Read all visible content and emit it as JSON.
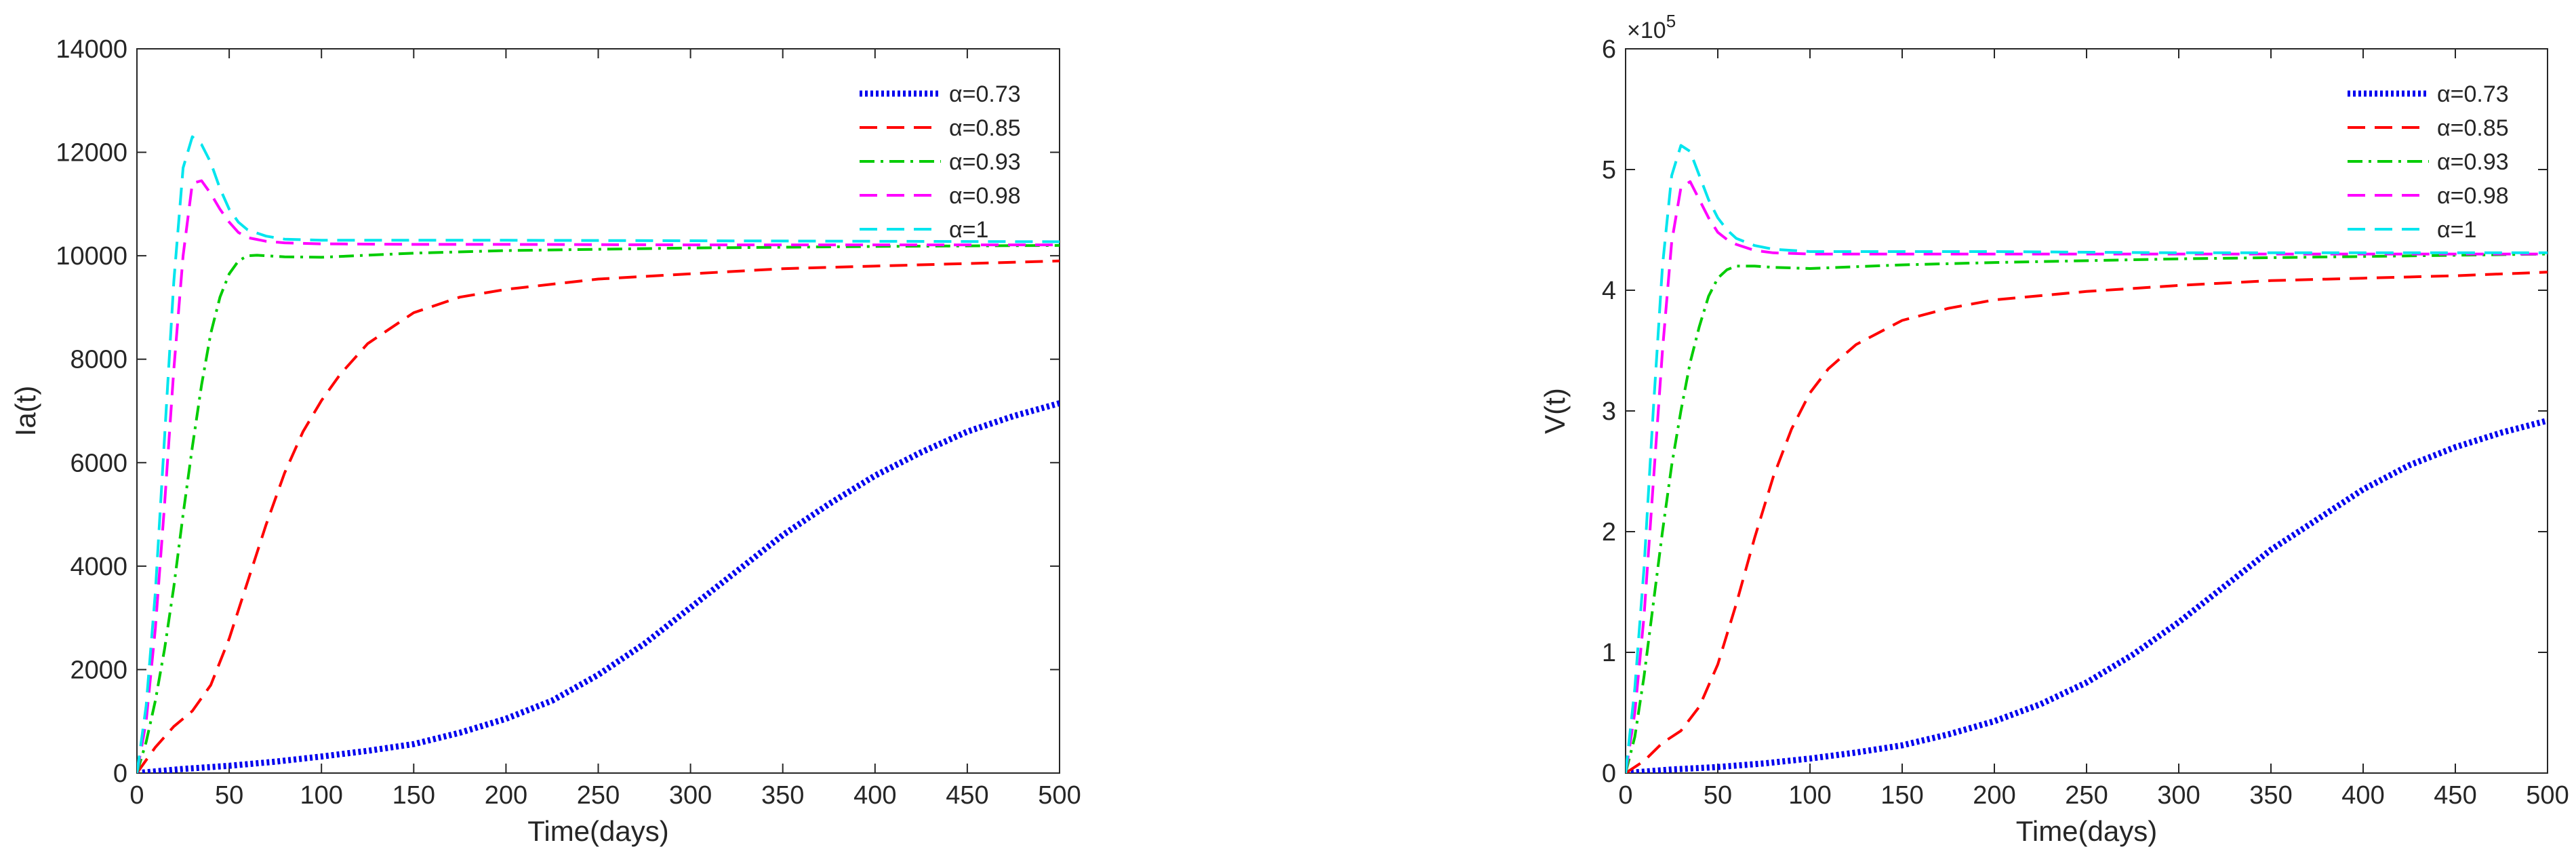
{
  "chart_data": [
    {
      "type": "line",
      "title": "",
      "xlabel": "Time(days)",
      "ylabel": "Ia(t)",
      "xlim": [
        0,
        500
      ],
      "ylim": [
        0,
        14000
      ],
      "y_exponent_label": "",
      "x_ticks": [
        0,
        50,
        100,
        150,
        200,
        250,
        300,
        350,
        400,
        450,
        500
      ],
      "x_tick_labels": [
        "0",
        "50",
        "100",
        "150",
        "200",
        "250",
        "300",
        "350",
        "400",
        "450",
        "500"
      ],
      "y_ticks": [
        0,
        2000,
        4000,
        6000,
        8000,
        10000,
        12000,
        14000
      ],
      "y_tick_labels": [
        "0",
        "2000",
        "4000",
        "6000",
        "8000",
        "10000",
        "12000",
        "14000"
      ],
      "grid": false,
      "legend_position": "top-right",
      "series": [
        {
          "name": "α=0.73",
          "color": "#0000ee",
          "dash": "dotted",
          "x": [
            0,
            25,
            50,
            75,
            100,
            125,
            150,
            175,
            200,
            225,
            250,
            275,
            300,
            325,
            350,
            375,
            400,
            425,
            450,
            475,
            500
          ],
          "y": [
            0,
            80,
            140,
            220,
            320,
            430,
            560,
            780,
            1050,
            1400,
            1900,
            2500,
            3200,
            3900,
            4600,
            5200,
            5750,
            6200,
            6600,
            6900,
            7150
          ]
        },
        {
          "name": "α=0.85",
          "color": "#ff0000",
          "dash": "dashed",
          "x": [
            0,
            10,
            20,
            30,
            40,
            50,
            60,
            70,
            80,
            90,
            100,
            110,
            125,
            150,
            175,
            200,
            250,
            300,
            350,
            400,
            450,
            500
          ],
          "y": [
            0,
            500,
            900,
            1200,
            1700,
            2600,
            3700,
            4800,
            5800,
            6600,
            7200,
            7700,
            8300,
            8900,
            9200,
            9350,
            9550,
            9650,
            9750,
            9800,
            9850,
            9900
          ]
        },
        {
          "name": "α=0.93",
          "color": "#00cc00",
          "dash": "dashdot",
          "x": [
            0,
            5,
            10,
            15,
            20,
            25,
            30,
            35,
            40,
            45,
            50,
            55,
            60,
            65,
            70,
            80,
            100,
            150,
            200,
            300,
            400,
            500
          ],
          "y": [
            0,
            600,
            1400,
            2400,
            3600,
            5000,
            6300,
            7500,
            8500,
            9200,
            9650,
            9900,
            10000,
            10010,
            10000,
            9980,
            9970,
            10050,
            10100,
            10150,
            10180,
            10200
          ]
        },
        {
          "name": "α=0.98",
          "color": "#ff00ff",
          "dash": "dashed",
          "x": [
            0,
            5,
            10,
            15,
            20,
            25,
            30,
            35,
            40,
            45,
            50,
            55,
            60,
            70,
            80,
            100,
            150,
            200,
            300,
            400,
            500
          ],
          "y": [
            0,
            1000,
            2800,
            5200,
            7800,
            10000,
            11400,
            11450,
            11200,
            10900,
            10650,
            10450,
            10350,
            10280,
            10250,
            10230,
            10220,
            10220,
            10210,
            10210,
            10210
          ]
        },
        {
          "name": "α=1",
          "color": "#00e5ee",
          "dash": "dashed",
          "x": [
            0,
            5,
            10,
            15,
            20,
            25,
            30,
            35,
            40,
            45,
            50,
            55,
            60,
            70,
            80,
            100,
            150,
            200,
            300,
            400,
            500
          ],
          "y": [
            0,
            1300,
            3500,
            6500,
            9500,
            11700,
            12300,
            12150,
            11800,
            11300,
            10900,
            10650,
            10500,
            10380,
            10320,
            10300,
            10300,
            10300,
            10290,
            10280,
            10270
          ]
        }
      ]
    },
    {
      "type": "line",
      "title": "",
      "xlabel": "Time(days)",
      "ylabel": "V(t)",
      "xlim": [
        0,
        500
      ],
      "ylim": [
        0,
        6
      ],
      "y_exponent_label": "×10",
      "y_exponent_power": "5",
      "x_ticks": [
        0,
        50,
        100,
        150,
        200,
        250,
        300,
        350,
        400,
        450,
        500
      ],
      "x_tick_labels": [
        "0",
        "50",
        "100",
        "150",
        "200",
        "250",
        "300",
        "350",
        "400",
        "450",
        "500"
      ],
      "y_ticks": [
        0,
        1,
        2,
        3,
        4,
        5,
        6
      ],
      "y_tick_labels": [
        "0",
        "1",
        "2",
        "3",
        "4",
        "5",
        "6"
      ],
      "grid": false,
      "legend_position": "top-right",
      "series": [
        {
          "name": "α=0.73",
          "color": "#0000ee",
          "dash": "dotted",
          "x": [
            0,
            25,
            50,
            75,
            100,
            125,
            150,
            175,
            200,
            225,
            250,
            275,
            300,
            325,
            350,
            375,
            400,
            425,
            450,
            475,
            500
          ],
          "y": [
            0,
            0.03,
            0.05,
            0.08,
            0.12,
            0.17,
            0.23,
            0.32,
            0.43,
            0.57,
            0.75,
            0.98,
            1.25,
            1.55,
            1.85,
            2.1,
            2.35,
            2.55,
            2.7,
            2.82,
            2.92
          ]
        },
        {
          "name": "α=0.85",
          "color": "#ff0000",
          "dash": "dashed",
          "x": [
            0,
            10,
            20,
            30,
            40,
            50,
            60,
            70,
            80,
            90,
            100,
            110,
            125,
            150,
            175,
            200,
            250,
            300,
            350,
            400,
            450,
            500
          ],
          "y": [
            0,
            0.1,
            0.25,
            0.35,
            0.55,
            0.9,
            1.4,
            1.95,
            2.45,
            2.85,
            3.15,
            3.35,
            3.55,
            3.75,
            3.85,
            3.92,
            3.99,
            4.04,
            4.08,
            4.1,
            4.12,
            4.15
          ]
        },
        {
          "name": "α=0.93",
          "color": "#00cc00",
          "dash": "dashdot",
          "x": [
            0,
            5,
            10,
            15,
            20,
            25,
            30,
            35,
            40,
            45,
            50,
            55,
            60,
            65,
            70,
            80,
            100,
            150,
            200,
            300,
            400,
            500
          ],
          "y": [
            0,
            0.3,
            0.8,
            1.4,
            2.0,
            2.55,
            3.0,
            3.4,
            3.7,
            3.95,
            4.1,
            4.17,
            4.2,
            4.2,
            4.2,
            4.19,
            4.18,
            4.21,
            4.23,
            4.26,
            4.28,
            4.3
          ]
        },
        {
          "name": "α=0.98",
          "color": "#ff00ff",
          "dash": "dashed",
          "x": [
            0,
            5,
            10,
            15,
            20,
            25,
            30,
            35,
            40,
            45,
            50,
            55,
            60,
            70,
            80,
            100,
            150,
            200,
            300,
            400,
            500
          ],
          "y": [
            0,
            0.5,
            1.3,
            2.4,
            3.5,
            4.4,
            4.85,
            4.9,
            4.75,
            4.6,
            4.48,
            4.42,
            4.38,
            4.33,
            4.31,
            4.3,
            4.3,
            4.3,
            4.3,
            4.3,
            4.3
          ]
        },
        {
          "name": "α=1",
          "color": "#00e5ee",
          "dash": "dashed",
          "x": [
            0,
            5,
            10,
            15,
            20,
            25,
            30,
            35,
            40,
            45,
            50,
            55,
            60,
            70,
            80,
            100,
            150,
            200,
            300,
            400,
            500
          ],
          "y": [
            0,
            0.7,
            1.7,
            3.0,
            4.2,
            4.95,
            5.2,
            5.15,
            4.95,
            4.75,
            4.6,
            4.5,
            4.43,
            4.37,
            4.34,
            4.32,
            4.32,
            4.32,
            4.31,
            4.31,
            4.31
          ]
        }
      ]
    }
  ]
}
